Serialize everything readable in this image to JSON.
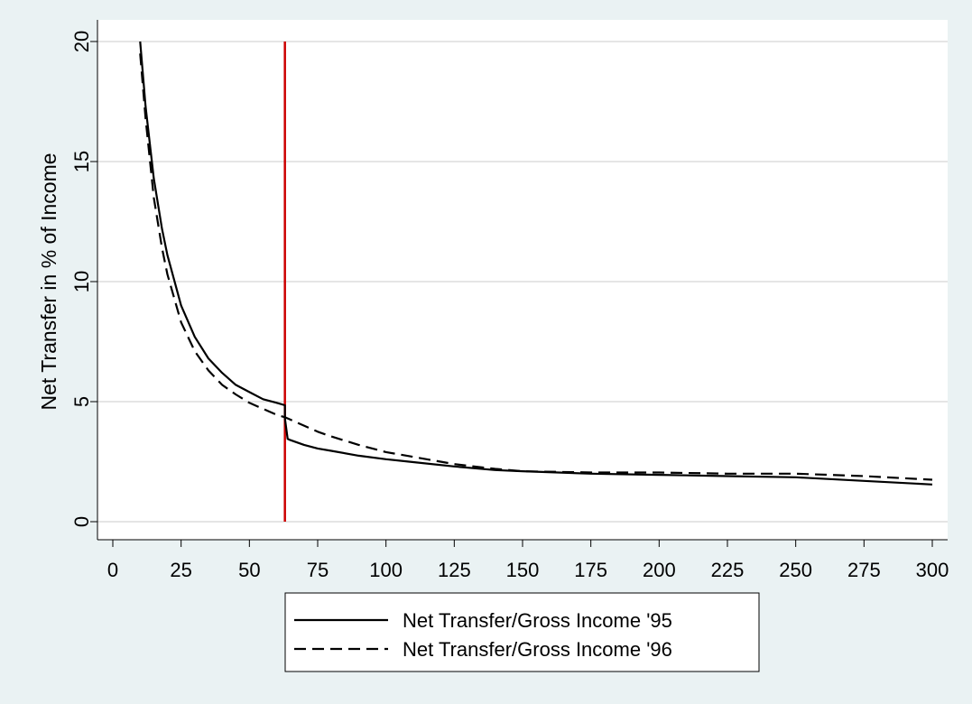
{
  "chart_data": {
    "type": "line",
    "xlabel": "",
    "ylabel": "Net Transfer in % of Income",
    "xlim": [
      0,
      300
    ],
    "ylim": [
      0,
      20
    ],
    "xticks": [
      "0",
      "25",
      "50",
      "75",
      "100",
      "125",
      "150",
      "175",
      "200",
      "225",
      "250",
      "275",
      "300"
    ],
    "yticks": [
      "0",
      "5",
      "10",
      "15",
      "20"
    ],
    "grid": true,
    "legend_position": "bottom",
    "reference_line": {
      "x": 63,
      "y_range": [
        0,
        20
      ],
      "color": "#cc0000"
    },
    "series": [
      {
        "name": "Net Transfer/Gross Income '95",
        "style": "solid",
        "color": "#000000",
        "points": [
          [
            10,
            20.0
          ],
          [
            12,
            17.3
          ],
          [
            15,
            14.3
          ],
          [
            18,
            12.2
          ],
          [
            20,
            11.1
          ],
          [
            25,
            9.0
          ],
          [
            30,
            7.7
          ],
          [
            35,
            6.8
          ],
          [
            40,
            6.2
          ],
          [
            45,
            5.7
          ],
          [
            50,
            5.4
          ],
          [
            55,
            5.1
          ],
          [
            60,
            4.95
          ],
          [
            63,
            4.85
          ],
          [
            63,
            4.3
          ],
          [
            64,
            3.45
          ],
          [
            65,
            3.4
          ],
          [
            70,
            3.2
          ],
          [
            75,
            3.05
          ],
          [
            80,
            2.95
          ],
          [
            90,
            2.75
          ],
          [
            100,
            2.6
          ],
          [
            110,
            2.48
          ],
          [
            125,
            2.3
          ],
          [
            140,
            2.15
          ],
          [
            150,
            2.1
          ],
          [
            175,
            2.0
          ],
          [
            200,
            1.95
          ],
          [
            225,
            1.9
          ],
          [
            250,
            1.85
          ],
          [
            275,
            1.7
          ],
          [
            300,
            1.55
          ]
        ]
      },
      {
        "name": "Net Transfer/Gross Income '96",
        "style": "dashed",
        "color": "#000000",
        "points": [
          [
            10,
            19.5
          ],
          [
            12,
            16.8
          ],
          [
            15,
            13.5
          ],
          [
            18,
            11.4
          ],
          [
            20,
            10.3
          ],
          [
            25,
            8.3
          ],
          [
            30,
            7.1
          ],
          [
            35,
            6.3
          ],
          [
            40,
            5.7
          ],
          [
            45,
            5.3
          ],
          [
            50,
            4.95
          ],
          [
            55,
            4.7
          ],
          [
            60,
            4.45
          ],
          [
            63,
            4.35
          ],
          [
            65,
            4.25
          ],
          [
            70,
            4.0
          ],
          [
            75,
            3.75
          ],
          [
            80,
            3.55
          ],
          [
            90,
            3.2
          ],
          [
            100,
            2.9
          ],
          [
            110,
            2.7
          ],
          [
            125,
            2.4
          ],
          [
            140,
            2.2
          ],
          [
            150,
            2.1
          ],
          [
            175,
            2.05
          ],
          [
            200,
            2.05
          ],
          [
            225,
            2.0
          ],
          [
            250,
            2.0
          ],
          [
            275,
            1.9
          ],
          [
            300,
            1.75
          ]
        ]
      }
    ],
    "colors": {
      "outer_background": "#eaf2f3",
      "plot_background": "#ffffff",
      "grid": "#e5e5e5"
    }
  }
}
